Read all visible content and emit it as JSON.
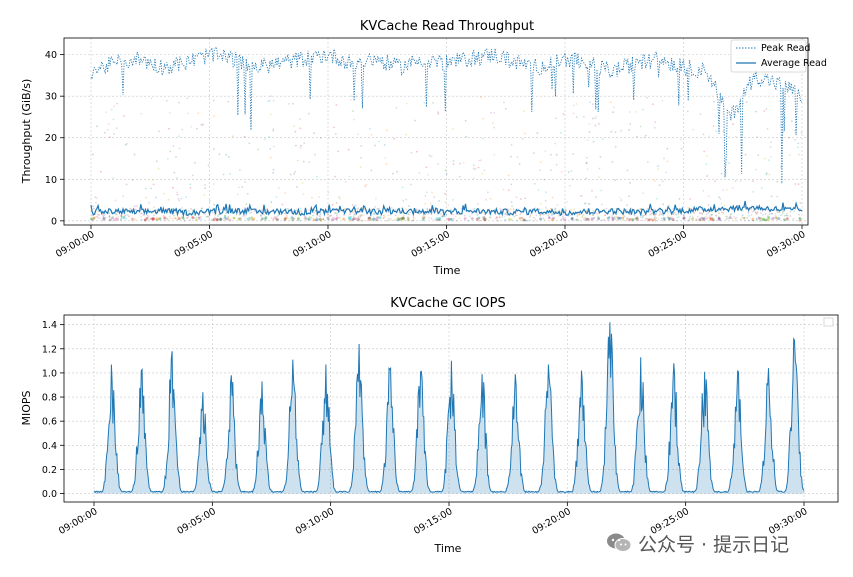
{
  "chart_data": [
    {
      "type": "line",
      "title": "KVCache Read Throughput",
      "xlabel": "Time",
      "ylabel": "Throughput (GiB/s)",
      "x_ticks": [
        "09:00:00",
        "09:05:00",
        "09:10:00",
        "09:15:00",
        "09:20:00",
        "09:25:00",
        "09:30:00"
      ],
      "x_range_min": [
        0,
        30
      ],
      "ylim": [
        -1,
        44
      ],
      "y_ticks": [
        0,
        10,
        20,
        30,
        40
      ],
      "grid": true,
      "legend": "top-right",
      "series": [
        {
          "name": "Peak Read",
          "style": "dotted",
          "color": "#1f77b4",
          "x_min": [
            0,
            1,
            2,
            3,
            4,
            5,
            6,
            7,
            8,
            9,
            10,
            11,
            12,
            13,
            14,
            15,
            16,
            17,
            18,
            19,
            20,
            21,
            22,
            23,
            24,
            25,
            26,
            27,
            28,
            29,
            30
          ],
          "values": [
            36,
            38,
            39,
            37,
            38,
            40,
            39,
            37,
            38,
            39,
            40,
            38,
            39,
            37,
            39,
            38,
            39,
            40,
            38,
            37,
            39,
            38,
            36,
            38,
            39,
            37,
            36,
            25,
            35,
            33,
            30
          ]
        },
        {
          "name": "Average Read",
          "style": "solid",
          "color": "#1f77b4",
          "x_min": [
            0,
            1,
            2,
            3,
            4,
            5,
            6,
            7,
            8,
            9,
            10,
            11,
            12,
            13,
            14,
            15,
            16,
            17,
            18,
            19,
            20,
            21,
            22,
            23,
            24,
            25,
            26,
            27,
            28,
            29,
            30
          ],
          "values": [
            2.0,
            2.3,
            2.1,
            2.4,
            2.0,
            2.2,
            2.5,
            2.1,
            2.3,
            2.0,
            2.2,
            2.4,
            2.1,
            2.3,
            2.2,
            2.0,
            2.4,
            2.2,
            2.1,
            2.3,
            2.0,
            2.2,
            2.4,
            2.1,
            2.3,
            2.5,
            2.8,
            3.0,
            3.2,
            2.8,
            2.5
          ]
        }
      ],
      "background_scatter": "multi-colored per-node read samples, 0-30 GiB/s"
    },
    {
      "type": "area",
      "title": "KVCache GC IOPS",
      "xlabel": "Time",
      "ylabel": "MIOPS",
      "x_ticks": [
        "09:00:00",
        "09:05:00",
        "09:10:00",
        "09:15:00",
        "09:20:00",
        "09:25:00",
        "09:30:00"
      ],
      "x_range_min": [
        0,
        30
      ],
      "ylim": [
        -0.07,
        1.48
      ],
      "y_ticks": [
        0.0,
        0.2,
        0.4,
        0.6,
        0.8,
        1.0,
        1.2,
        1.4
      ],
      "grid": true,
      "legend": "top-right (empty)",
      "color": "#1f77b4",
      "peaks": [
        {
          "t_min": 0.75,
          "value": 1.07
        },
        {
          "t_min": 2.0,
          "value": 1.02
        },
        {
          "t_min": 3.3,
          "value": 1.18
        },
        {
          "t_min": 4.6,
          "value": 0.84
        },
        {
          "t_min": 5.8,
          "value": 0.98
        },
        {
          "t_min": 7.1,
          "value": 0.93
        },
        {
          "t_min": 8.4,
          "value": 1.11
        },
        {
          "t_min": 9.8,
          "value": 1.07
        },
        {
          "t_min": 11.2,
          "value": 1.24
        },
        {
          "t_min": 12.5,
          "value": 1.03
        },
        {
          "t_min": 13.8,
          "value": 1.01
        },
        {
          "t_min": 15.1,
          "value": 1.1
        },
        {
          "t_min": 16.4,
          "value": 0.99
        },
        {
          "t_min": 17.8,
          "value": 0.99
        },
        {
          "t_min": 19.2,
          "value": 1.07
        },
        {
          "t_min": 20.6,
          "value": 1.02
        },
        {
          "t_min": 21.8,
          "value": 1.42
        },
        {
          "t_min": 23.1,
          "value": 1.13
        },
        {
          "t_min": 24.5,
          "value": 1.08
        },
        {
          "t_min": 25.8,
          "value": 1.01
        },
        {
          "t_min": 27.2,
          "value": 1.02
        },
        {
          "t_min": 28.5,
          "value": 1.04
        },
        {
          "t_min": 29.6,
          "value": 1.27
        }
      ],
      "baseline": 0.01
    }
  ],
  "watermark": {
    "text": "公众号 · 提示日记",
    "icon": "wechat-icon"
  }
}
